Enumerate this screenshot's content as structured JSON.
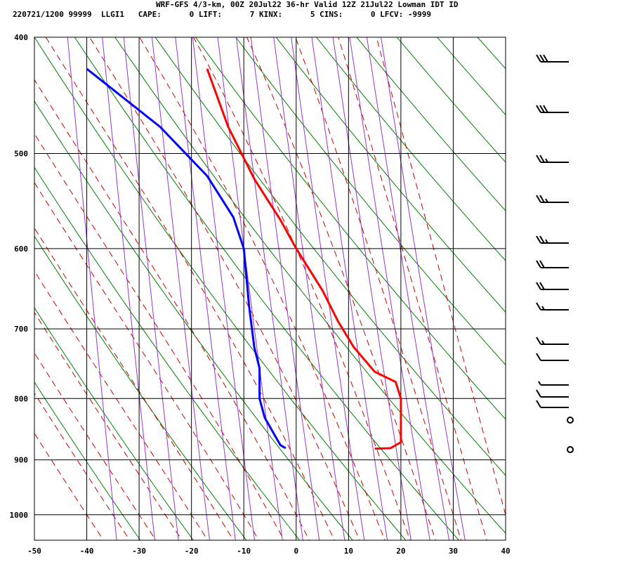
{
  "header": {
    "line1": "WRF-GFS 4/3-km, 00Z 20Jul22 36-hr Valid 12Z 21Jul22 Lowman IDT ID",
    "line2": "220721/1200 99999  LLGI1   CAPE:      0 LIFT:      7 KINX:      5 CINS:      0 LFCV: -9999"
  },
  "chart_data": {
    "type": "line",
    "title": "WRF-GFS 4/3-km, 00Z 20Jul22 36-hr Valid 12Z 21Jul22 Lowman IDT ID",
    "x_axis": {
      "ticks": [
        -50,
        -40,
        -30,
        -20,
        -10,
        0,
        10,
        20,
        30,
        40
      ],
      "tick_labels": [
        "-50",
        "-40",
        "-30",
        "-20",
        "-10",
        "0",
        "10",
        "20",
        "30",
        "40"
      ],
      "range": [
        -50,
        40
      ]
    },
    "y_axis": {
      "scale": "log",
      "ticks": [
        400,
        500,
        600,
        700,
        800,
        900,
        1000
      ],
      "tick_labels": [
        "400",
        "500",
        "600",
        "700",
        "800",
        "900",
        "1000"
      ],
      "range": [
        400,
        1050
      ]
    },
    "grid": true,
    "series": [
      {
        "color": "#ff0000",
        "points": [
          [
            -17,
            425
          ],
          [
            -13,
            475
          ],
          [
            -8,
            525
          ],
          [
            -3,
            568
          ],
          [
            0,
            600
          ],
          [
            5,
            650
          ],
          [
            8,
            690
          ],
          [
            11,
            725
          ],
          [
            15,
            760
          ],
          [
            19,
            775
          ],
          [
            20,
            800
          ],
          [
            20,
            830
          ],
          [
            20,
            870
          ],
          [
            18,
            880
          ],
          [
            15,
            881
          ]
        ]
      },
      {
        "color": "#0000ff",
        "points": [
          [
            -40,
            425
          ],
          [
            -26,
            475
          ],
          [
            -17,
            522
          ],
          [
            -12,
            565
          ],
          [
            -10,
            600
          ],
          [
            -9,
            670
          ],
          [
            -8,
            725
          ],
          [
            -7,
            755
          ],
          [
            -7,
            800
          ],
          [
            -6,
            830
          ],
          [
            -4,
            860
          ],
          [
            -3,
            875
          ],
          [
            -2,
            880
          ]
        ]
      }
    ],
    "wind_barbs": {
      "pressures": [
        425,
        475,
        525,
        575,
        625,
        660,
        690,
        720,
        750,
        775,
        800,
        825,
        850,
        880,
        905
      ],
      "speeds_kt": [
        30,
        30,
        25,
        25,
        25,
        20,
        20,
        15,
        15,
        10,
        5,
        10,
        10,
        0,
        0
      ]
    },
    "colors": {
      "isotherm": "#000000",
      "dry_adiabat": "#008000",
      "moist_adiabat": "#cc0000",
      "mixing_ratio": "#9933cc",
      "temperature": "#ff0000",
      "dewpoint": "#0000ff"
    }
  }
}
